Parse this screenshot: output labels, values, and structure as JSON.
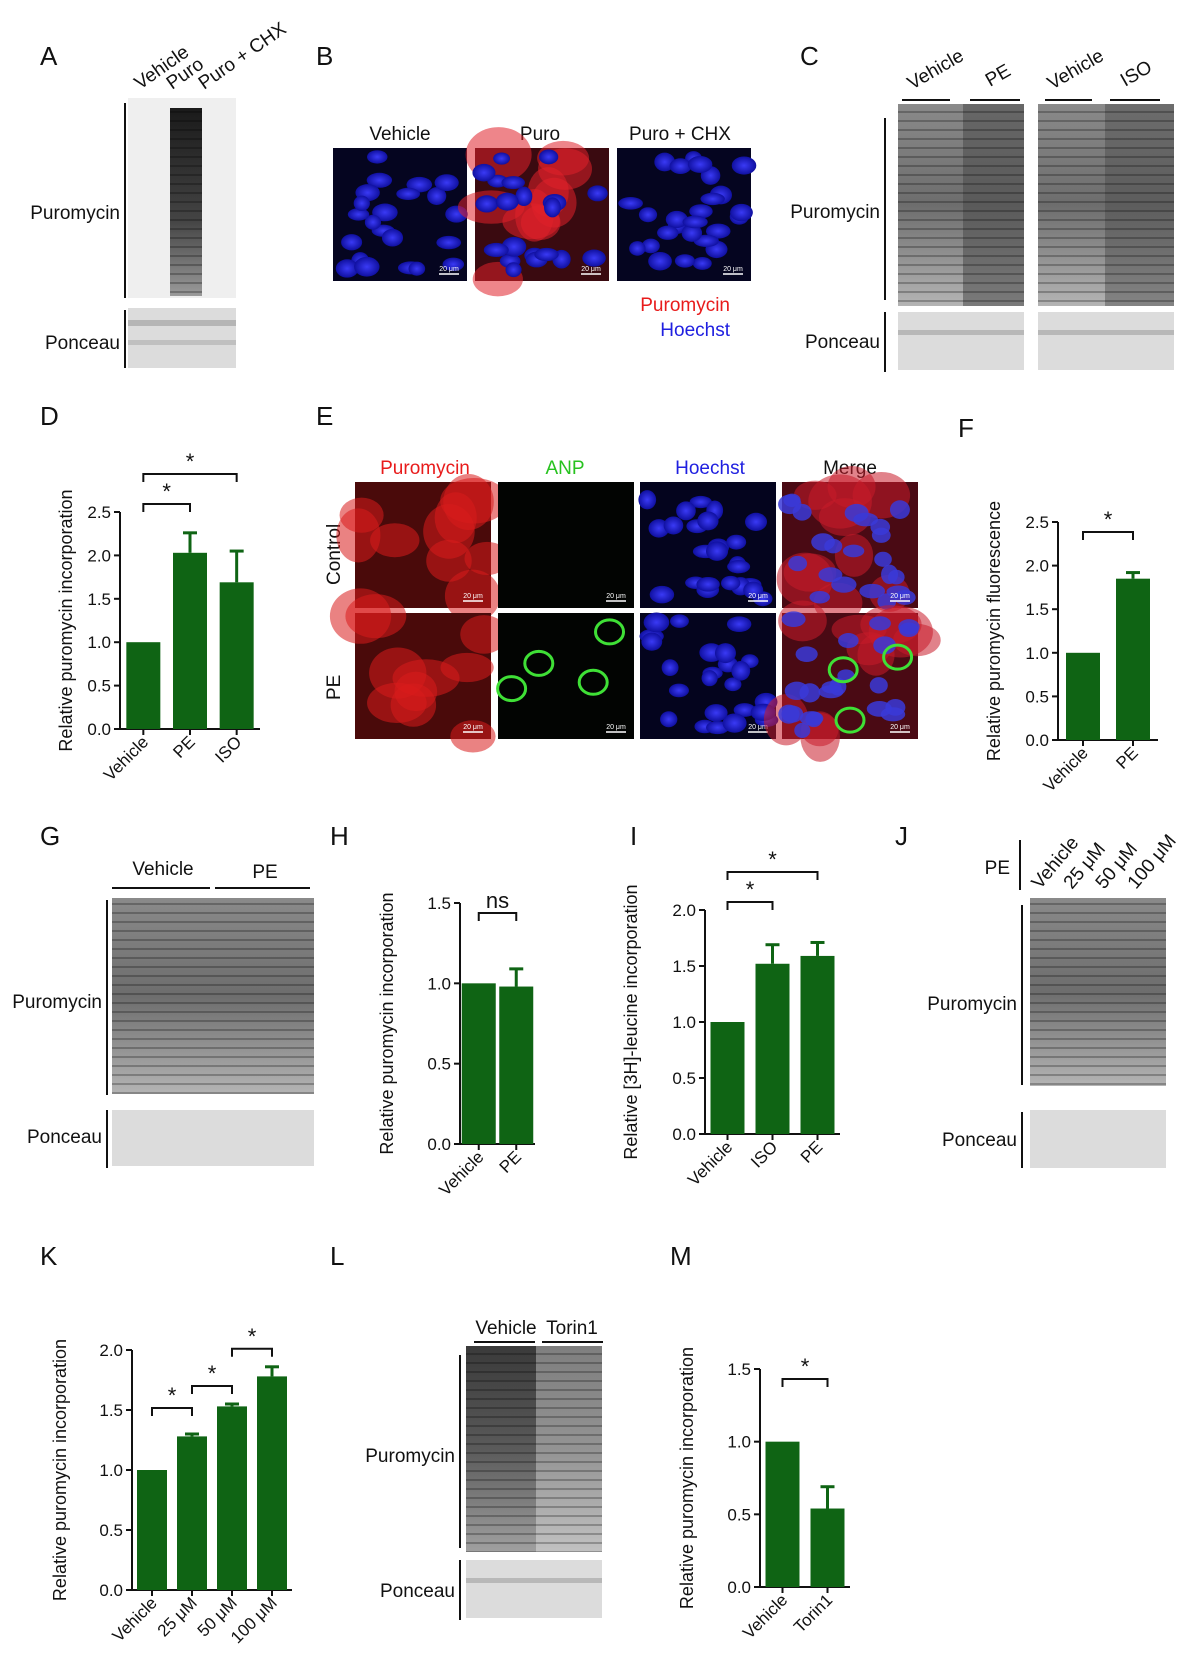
{
  "panels": {
    "A": {
      "label": "A",
      "lanes": [
        "Vehicle",
        "Puro",
        "Puro + CHX"
      ],
      "rows": [
        "Puromycin",
        "Ponceau"
      ]
    },
    "B": {
      "label": "B",
      "columns": [
        "Vehicle",
        "Puro",
        "Puro + CHX"
      ],
      "legend": [
        "Puromycin",
        "Hoechst"
      ],
      "scale_bar": "20 μm"
    },
    "C": {
      "label": "C",
      "groups": [
        "Vehicle",
        "PE",
        "Vehicle",
        "ISO"
      ],
      "rows": [
        "Puromycin",
        "Ponceau"
      ]
    },
    "E": {
      "label": "E",
      "columns": [
        "Puromycin",
        "ANP",
        "Hoechst",
        "Merge"
      ],
      "rows": [
        "Control",
        "PE"
      ],
      "scale_bar": "20 μm"
    },
    "G": {
      "label": "G",
      "groups": [
        "Vehicle",
        "PE"
      ],
      "rows": [
        "Puromycin",
        "Ponceau"
      ]
    },
    "J": {
      "label": "J",
      "treatment": "PE",
      "lanes": [
        "Vehicle",
        "25 μM",
        "50 μM",
        "100 μM"
      ],
      "rows": [
        "Puromycin",
        "Ponceau"
      ]
    },
    "L": {
      "label": "L",
      "groups": [
        "Vehicle",
        "Torin1"
      ],
      "rows": [
        "Puromycin",
        "Ponceau"
      ]
    }
  },
  "colors": {
    "bar": "#0f6414",
    "puromycin": "#e81b1b",
    "hoechst": "#2020e0",
    "anp": "#27c21f"
  },
  "chart_data": [
    {
      "panel": "D",
      "type": "bar",
      "categories": [
        "Vehicle",
        "PE",
        "ISO"
      ],
      "values": [
        1.0,
        2.03,
        1.69
      ],
      "errors": [
        0,
        0.23,
        0.36
      ],
      "ylabel": "Relative puromycin incorporation",
      "ylim": [
        0,
        2.5
      ],
      "yticks": [
        "0.0",
        "0.5",
        "1.0",
        "1.5",
        "2.0",
        "2.5"
      ],
      "significance": [
        {
          "pair": [
            0,
            1
          ],
          "label": "*"
        },
        {
          "pair": [
            0,
            2
          ],
          "label": "*"
        }
      ]
    },
    {
      "panel": "F",
      "type": "bar",
      "categories": [
        "Vehicle",
        "PE"
      ],
      "values": [
        1.0,
        1.85
      ],
      "errors": [
        0,
        0.07
      ],
      "ylabel": "Relative puromycin fluorescence",
      "ylim": [
        0,
        2.5
      ],
      "yticks": [
        "0.0",
        "0.5",
        "1.0",
        "1.5",
        "2.0",
        "2.5"
      ],
      "significance": [
        {
          "pair": [
            0,
            1
          ],
          "label": "*"
        }
      ]
    },
    {
      "panel": "H",
      "type": "bar",
      "categories": [
        "Vehicle",
        "PE"
      ],
      "values": [
        1.0,
        0.98
      ],
      "errors": [
        0,
        0.11
      ],
      "ylabel": "Relative puromycin incorporation",
      "ylim": [
        0,
        1.5
      ],
      "yticks": [
        "0.0",
        "0.5",
        "1.0",
        "1.5"
      ],
      "significance": [
        {
          "pair": [
            0,
            1
          ],
          "label": "ns"
        }
      ]
    },
    {
      "panel": "I",
      "type": "bar",
      "categories": [
        "Vehicle",
        "ISO",
        "PE"
      ],
      "values": [
        1.0,
        1.52,
        1.59
      ],
      "errors": [
        0,
        0.17,
        0.12
      ],
      "ylabel": "Relative [3H]-leucine incorporation",
      "ylim": [
        0,
        2.0
      ],
      "yticks": [
        "0.0",
        "0.5",
        "1.0",
        "1.5",
        "2.0"
      ],
      "significance": [
        {
          "pair": [
            0,
            1
          ],
          "label": "*"
        },
        {
          "pair": [
            0,
            2
          ],
          "label": "*"
        }
      ]
    },
    {
      "panel": "K",
      "type": "bar",
      "categories": [
        "Vehicle",
        "25 μM",
        "50 μM",
        "100 μM"
      ],
      "values": [
        1.0,
        1.28,
        1.53,
        1.78
      ],
      "errors": [
        0,
        0.02,
        0.02,
        0.08
      ],
      "ylabel": "Relative puromycin incorporation",
      "ylim": [
        0,
        2.0
      ],
      "yticks": [
        "0.0",
        "0.5",
        "1.0",
        "1.5",
        "2.0"
      ],
      "significance": [
        {
          "pair": [
            0,
            1
          ],
          "label": "*"
        },
        {
          "pair": [
            1,
            2
          ],
          "label": "*"
        },
        {
          "pair": [
            2,
            3
          ],
          "label": "*"
        }
      ]
    },
    {
      "panel": "M",
      "type": "bar",
      "categories": [
        "Vehicle",
        "Torin1"
      ],
      "values": [
        1.0,
        0.54
      ],
      "errors": [
        0,
        0.15
      ],
      "ylabel": "Relative puromycin incorporation",
      "ylim": [
        0,
        1.5
      ],
      "yticks": [
        "0.0",
        "0.5",
        "1.0",
        "1.5"
      ],
      "significance": [
        {
          "pair": [
            0,
            1
          ],
          "label": "*"
        }
      ]
    }
  ]
}
